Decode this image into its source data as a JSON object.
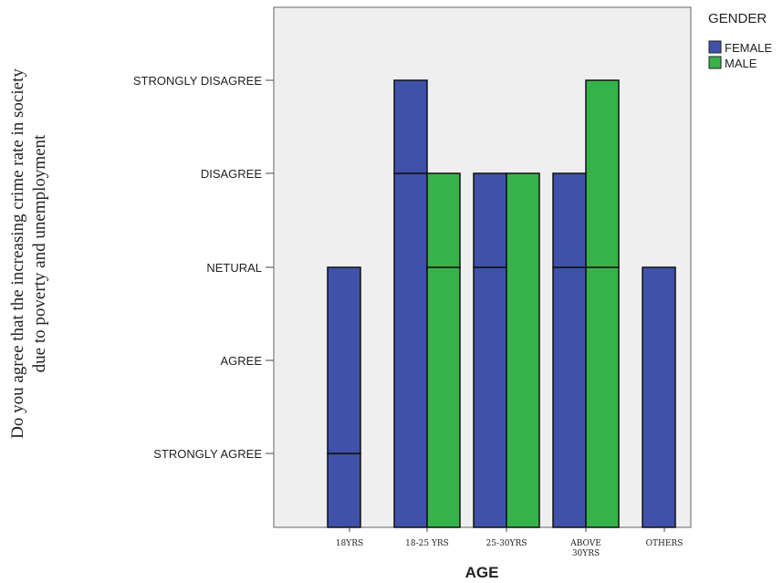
{
  "chart_data": {
    "type": "bar",
    "title": "",
    "xlabel": "AGE",
    "ylabel_lines": [
      "Do you agree that the increasing crime rate in society",
      "due to poverty and unemployment"
    ],
    "y_categories": [
      "STRONGLY AGREE",
      "AGREE",
      "NETURAL",
      "DISAGREE",
      "STRONGLY DISAGREE"
    ],
    "categories": [
      {
        "lines": [
          "18YRS"
        ]
      },
      {
        "lines": [
          "18-25 YRS"
        ]
      },
      {
        "lines": [
          "25-30YRS"
        ]
      },
      {
        "lines": [
          "ABOVE",
          "30YRS"
        ]
      },
      {
        "lines": [
          "OTHERS"
        ]
      }
    ],
    "legend": {
      "title": "GENDER",
      "position": "top-right"
    },
    "series": [
      {
        "name": "FEMALE",
        "color": "#3f51a8",
        "values": [
          [
            "STRONGLY AGREE",
            "NETURAL"
          ],
          [
            "DISAGREE",
            "STRONGLY DISAGREE"
          ],
          [
            "NETURAL",
            "DISAGREE"
          ],
          [
            "NETURAL",
            "DISAGREE"
          ],
          [
            "NETURAL"
          ]
        ]
      },
      {
        "name": "MALE",
        "color": "#35b34a",
        "values": [
          [],
          [
            "NETURAL",
            "DISAGREE"
          ],
          [
            "DISAGREE"
          ],
          [
            "NETURAL",
            "STRONGLY DISAGREE"
          ],
          []
        ]
      }
    ],
    "plot_background": "#efefef",
    "grid": false
  }
}
